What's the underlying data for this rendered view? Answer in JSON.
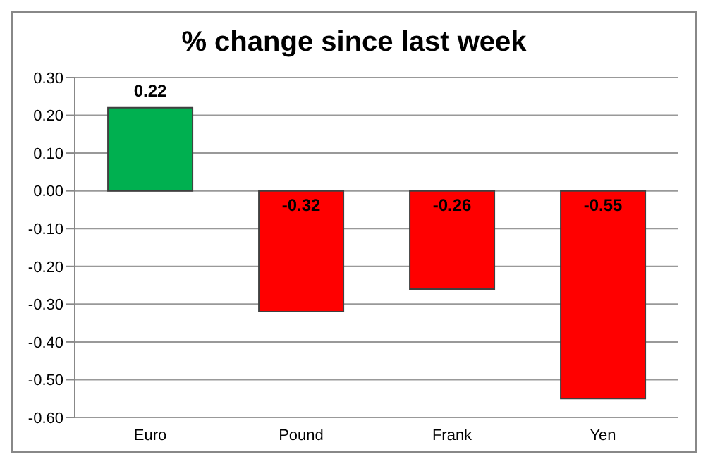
{
  "chart_data": {
    "type": "bar",
    "title": "% change since last week",
    "categories": [
      "Euro",
      "Pound",
      "Frank",
      "Yen"
    ],
    "values": [
      0.22,
      -0.32,
      -0.26,
      -0.55
    ],
    "colors": [
      "#00b050",
      "#ff0000",
      "#ff0000",
      "#ff0000"
    ],
    "ylim": [
      -0.6,
      0.3
    ],
    "yticks": [
      {
        "value": -0.6,
        "label": "-0.60"
      },
      {
        "value": -0.5,
        "label": "-0.50"
      },
      {
        "value": -0.4,
        "label": "-0.40"
      },
      {
        "value": -0.3,
        "label": "-0.30"
      },
      {
        "value": -0.2,
        "label": "-0.20"
      },
      {
        "value": -0.1,
        "label": "-0.10"
      },
      {
        "value": 0,
        "label": "0.00"
      },
      {
        "value": 0.1,
        "label": "0.10"
      },
      {
        "value": 0.2,
        "label": "0.20"
      },
      {
        "value": 0.3,
        "label": "0.30"
      }
    ],
    "grid": "y",
    "data_labels": true,
    "legend": false
  }
}
